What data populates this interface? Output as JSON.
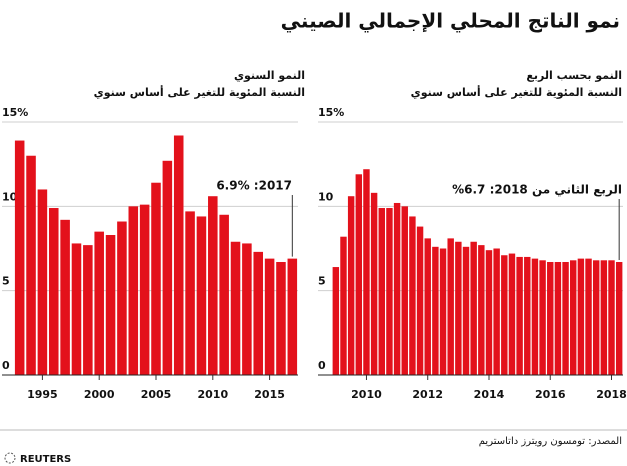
{
  "title": "نمو الناتج المحلي الإجمالي الصيني",
  "source": "المصدر: تومسون رويترز داتاستريم",
  "brand": "REUTERS",
  "chart_data": [
    {
      "type": "bar",
      "subtitle": [
        "النمو السنوي",
        "النسبة المئوية للتغير على أساس سنوي"
      ],
      "categories": [
        null,
        null,
        "1995",
        null,
        null,
        null,
        null,
        "2000",
        null,
        null,
        null,
        null,
        "2005",
        null,
        null,
        null,
        null,
        "2010",
        null,
        null,
        null,
        null,
        "2015",
        null,
        null
      ],
      "values": [
        13.9,
        13.0,
        11.0,
        9.9,
        9.2,
        7.8,
        7.7,
        8.5,
        8.3,
        9.1,
        10.0,
        10.1,
        11.4,
        12.7,
        14.2,
        9.7,
        9.4,
        10.6,
        9.5,
        7.9,
        7.8,
        7.3,
        6.9,
        6.7,
        6.9
      ],
      "color": "#e3111b",
      "ylim": [
        0,
        15
      ],
      "yticks": [
        0,
        5,
        10,
        {
          "value": 15,
          "label": "15%"
        }
      ],
      "grid": true,
      "annotation": "2017: 6.9%"
    },
    {
      "type": "bar",
      "subtitle": [
        "النمو بحسب الربع",
        "النسبة المئوية للتغير على أساس سنوي"
      ],
      "categories": [
        null,
        null,
        null,
        null,
        "2010",
        null,
        null,
        null,
        null,
        null,
        null,
        null,
        "2012",
        null,
        null,
        null,
        null,
        null,
        null,
        null,
        "2014",
        null,
        null,
        null,
        null,
        null,
        null,
        null,
        "2016",
        null,
        null,
        null,
        null,
        null,
        null,
        null,
        "2018",
        null
      ],
      "values": [
        6.4,
        8.2,
        10.6,
        11.9,
        12.2,
        10.8,
        9.9,
        9.9,
        10.2,
        10.0,
        9.4,
        8.8,
        8.1,
        7.6,
        7.5,
        8.1,
        7.9,
        7.6,
        7.9,
        7.7,
        7.4,
        7.5,
        7.1,
        7.2,
        7.0,
        7.0,
        6.9,
        6.8,
        6.7,
        6.7,
        6.7,
        6.8,
        6.9,
        6.9,
        6.8,
        6.8,
        6.8,
        6.7
      ],
      "color": "#e3111b",
      "ylim": [
        0,
        15
      ],
      "yticks": [
        0,
        5,
        10,
        {
          "value": 15,
          "label": "15%"
        }
      ],
      "grid": true,
      "annotation": "الربع الثاني من 2018: 6.7%"
    }
  ]
}
